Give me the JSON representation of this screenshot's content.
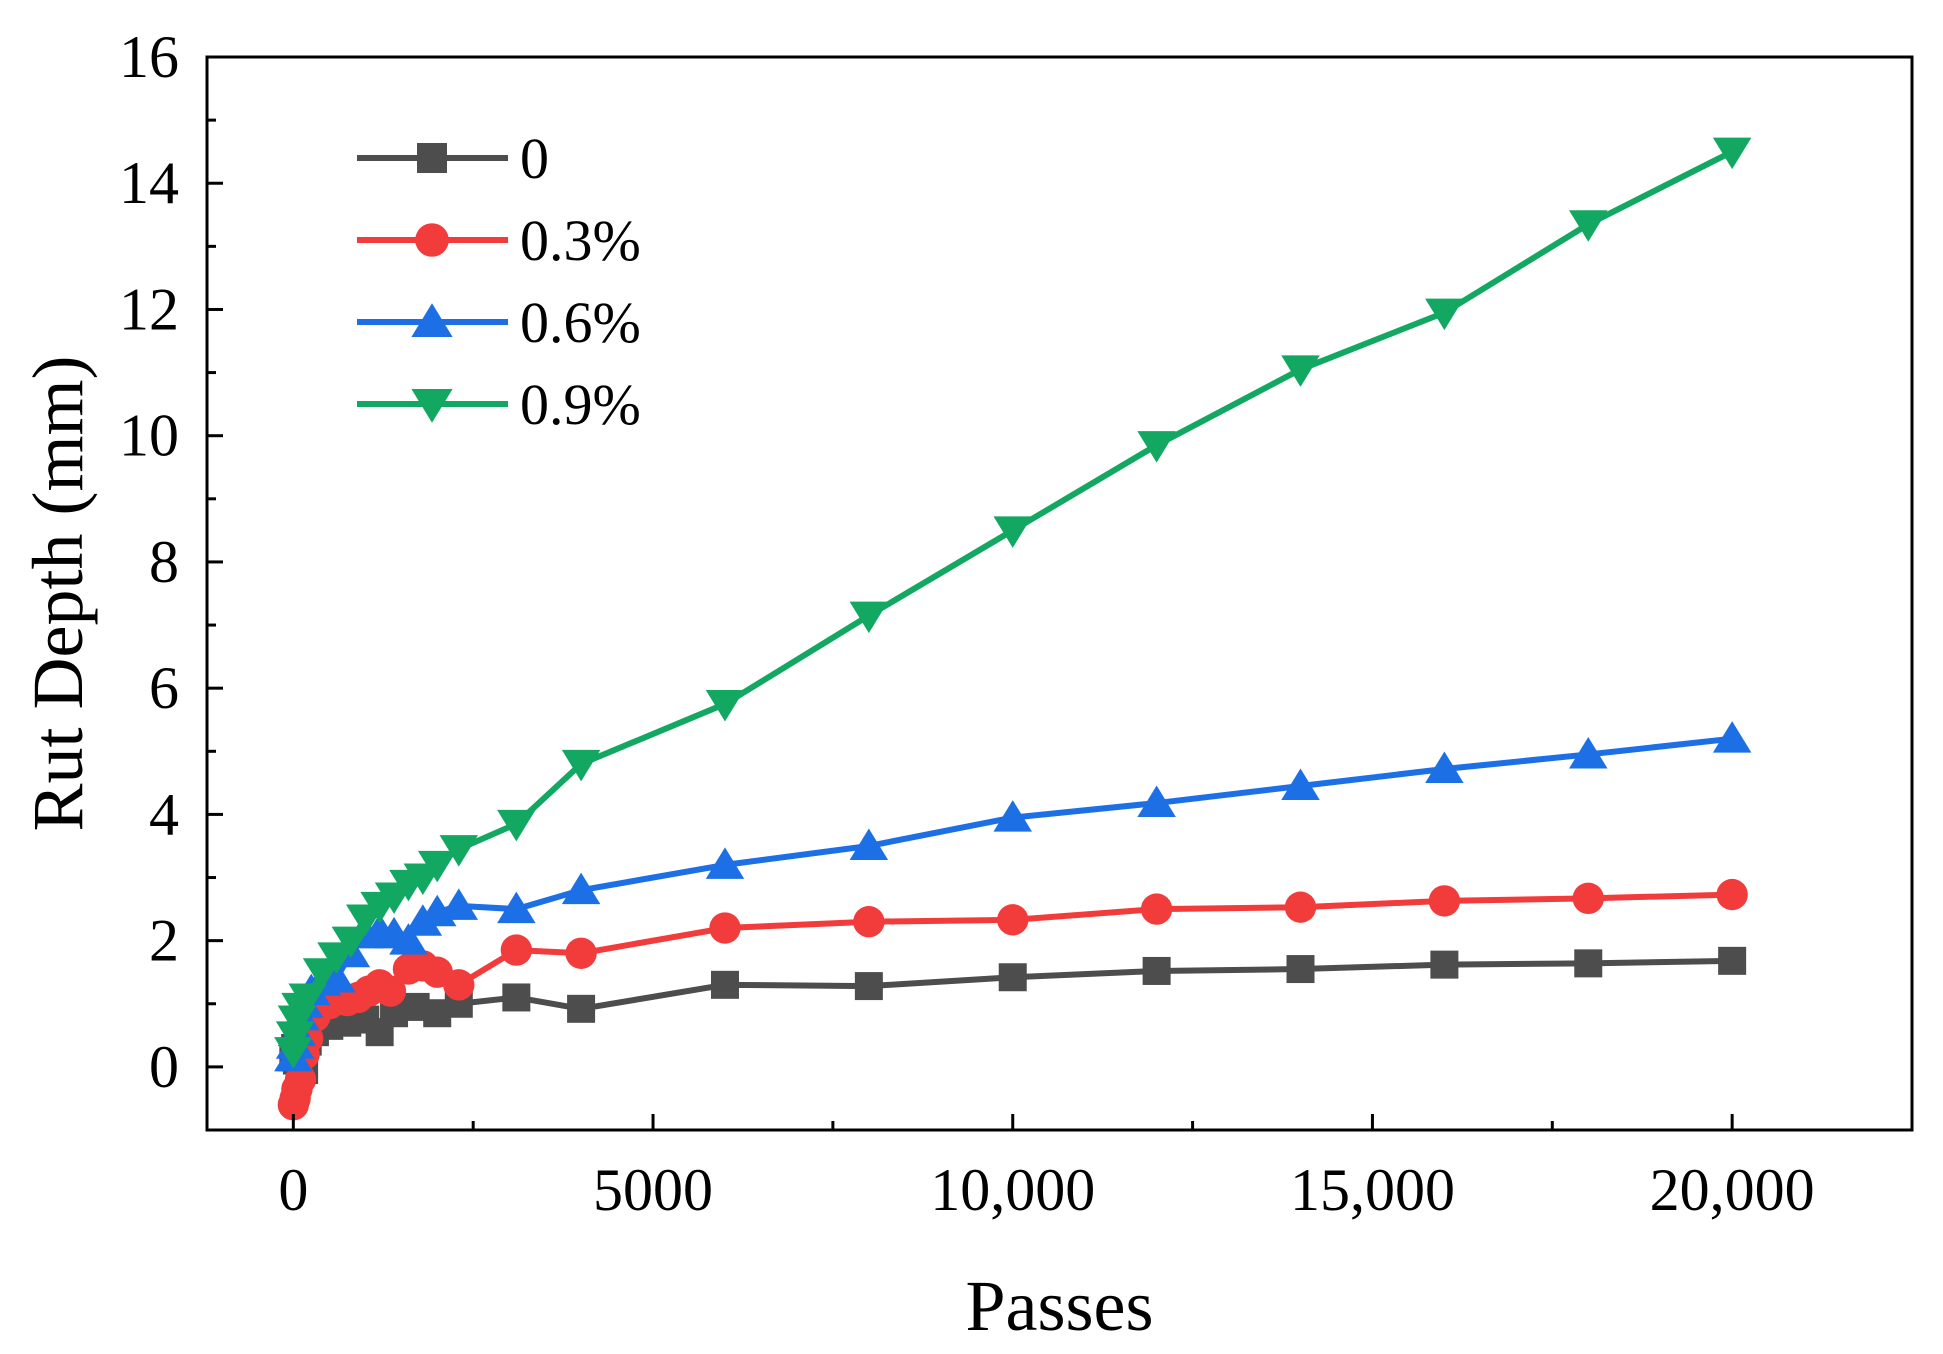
{
  "chart_data": {
    "type": "line",
    "title": "",
    "xlabel": "Passes",
    "ylabel": "Rut Depth (mm)",
    "xlim": [
      -1200,
      22500
    ],
    "ylim": [
      -1,
      16
    ],
    "xticks": [
      0,
      5000,
      10000,
      15000,
      20000
    ],
    "xtick_labels": [
      "0",
      "5000",
      "10,000",
      "15,000",
      "20,000"
    ],
    "yticks": [
      0,
      2,
      4,
      6,
      8,
      10,
      12,
      14,
      16
    ],
    "ytick_labels": [
      "0",
      "2",
      "4",
      "6",
      "8",
      "10",
      "12",
      "14",
      "16"
    ],
    "legend_position": "top-left",
    "series": [
      {
        "name": "0",
        "color": "#4d4d4d",
        "marker": "square",
        "x": [
          0,
          25,
          50,
          100,
          150,
          200,
          300,
          500,
          750,
          1000,
          1200,
          1400,
          1700,
          2000,
          2300,
          3100,
          4000,
          6000,
          8000,
          10000,
          12000,
          14000,
          16000,
          18000,
          20000
        ],
        "y": [
          0.15,
          0.3,
          0.1,
          0.2,
          -0.05,
          0.4,
          0.55,
          0.65,
          0.7,
          0.75,
          0.55,
          0.85,
          0.95,
          0.85,
          1.0,
          1.1,
          0.92,
          1.3,
          1.28,
          1.42,
          1.52,
          1.55,
          1.62,
          1.64,
          1.68
        ]
      },
      {
        "name": "0.3%",
        "color": "#f23b3b",
        "marker": "circle",
        "x": [
          0,
          25,
          50,
          100,
          150,
          200,
          300,
          500,
          750,
          900,
          1050,
          1200,
          1350,
          1600,
          1800,
          2000,
          2300,
          3100,
          4000,
          6000,
          8000,
          10000,
          12000,
          14000,
          16000,
          18000,
          20000
        ],
        "y": [
          -0.6,
          -0.5,
          -0.35,
          -0.2,
          0.2,
          0.45,
          0.8,
          1.0,
          1.05,
          1.1,
          1.2,
          1.3,
          1.2,
          1.55,
          1.6,
          1.5,
          1.3,
          1.85,
          1.8,
          2.2,
          2.3,
          2.33,
          2.5,
          2.53,
          2.63,
          2.67,
          2.73
        ]
      },
      {
        "name": "0.6%",
        "color": "#1d6fe6",
        "marker": "triangle-up",
        "x": [
          0,
          25,
          50,
          100,
          150,
          250,
          400,
          600,
          800,
          1000,
          1200,
          1400,
          1600,
          1800,
          2000,
          2300,
          3100,
          4000,
          6000,
          8000,
          10000,
          12000,
          14000,
          16000,
          18000,
          20000
        ],
        "y": [
          0.15,
          0.35,
          0.55,
          0.8,
          1.0,
          1.2,
          1.35,
          1.4,
          1.8,
          2.1,
          2.15,
          2.1,
          2.0,
          2.3,
          2.45,
          2.55,
          2.5,
          2.8,
          3.2,
          3.5,
          3.95,
          4.18,
          4.45,
          4.72,
          4.95,
          5.2
        ]
      },
      {
        "name": "0.9%",
        "color": "#12a862",
        "marker": "triangle-down",
        "x": [
          0,
          25,
          50,
          100,
          200,
          400,
          600,
          800,
          1000,
          1200,
          1400,
          1600,
          1800,
          2000,
          2300,
          3100,
          4000,
          6000,
          8000,
          10000,
          12000,
          14000,
          16000,
          18000,
          20000
        ],
        "y": [
          0.25,
          0.5,
          0.75,
          0.95,
          1.1,
          1.5,
          1.75,
          2.0,
          2.35,
          2.55,
          2.7,
          2.9,
          3.0,
          3.2,
          3.45,
          3.85,
          4.8,
          5.75,
          7.15,
          8.5,
          9.85,
          11.05,
          11.95,
          13.35,
          14.5
        ]
      }
    ]
  }
}
